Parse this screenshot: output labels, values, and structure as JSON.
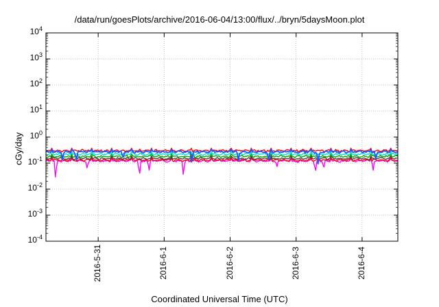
{
  "chart_data": {
    "type": "line",
    "title": "/data/run/goesPlots/archive/2016-06-04/13:00/flux/../bryn/5daysMoon.plot",
    "xlabel": "Coordinated Universal Time (UTC)",
    "ylabel": "cGy/day",
    "y_scale": "log",
    "ylim": [
      0.0001,
      10000
    ],
    "xlim": [
      "2016-05-30 05:00",
      "2016-06-04 13:00"
    ],
    "grid": true,
    "yticks": [
      {
        "value": 0.0001,
        "base": "10",
        "exp": "-4"
      },
      {
        "value": 0.001,
        "base": "10",
        "exp": "-3"
      },
      {
        "value": 0.01,
        "base": "10",
        "exp": "-2"
      },
      {
        "value": 0.1,
        "base": "10",
        "exp": "-1"
      },
      {
        "value": 1,
        "base": "10",
        "exp": "0"
      },
      {
        "value": 10,
        "base": "10",
        "exp": "1"
      },
      {
        "value": 100,
        "base": "10",
        "exp": "2"
      },
      {
        "value": 1000,
        "base": "10",
        "exp": "3"
      },
      {
        "value": 10000,
        "base": "10",
        "exp": "4"
      }
    ],
    "xticks": [
      {
        "value": "2016-05-31",
        "label": "2016-5-31"
      },
      {
        "value": "2016-06-01",
        "label": "2016-6-1"
      },
      {
        "value": "2016-06-02",
        "label": "2016-6-2"
      },
      {
        "value": "2016-06-03",
        "label": "2016-6-3"
      },
      {
        "value": "2016-06-04",
        "label": "2016-6-4"
      }
    ],
    "series": [
      {
        "color": "#ff00ff",
        "base": 0.12,
        "dips": [
          {
            "t": "2016-05-30 08:30",
            "v": 0.022
          },
          {
            "t": "2016-05-30 20:00",
            "v": 0.06
          },
          {
            "t": "2016-05-31 15:00",
            "v": 0.028
          },
          {
            "t": "2016-05-31 18:30",
            "v": 0.05
          },
          {
            "t": "2016-06-01 07:00",
            "v": 0.03
          },
          {
            "t": "2016-06-02 17:00",
            "v": 0.07
          },
          {
            "t": "2016-06-03 07:00",
            "v": 0.04
          },
          {
            "t": "2016-06-03 10:00",
            "v": 0.06
          },
          {
            "t": "2016-06-04 04:00",
            "v": 0.05
          }
        ]
      },
      {
        "color": "#ff0000",
        "base": 0.13,
        "dips": []
      },
      {
        "color": "#444444",
        "base": 0.15,
        "dips": []
      },
      {
        "color": "#00aa00",
        "base": 0.18,
        "dips": []
      },
      {
        "color": "#00dddd",
        "base": 0.22,
        "dips": []
      },
      {
        "color": "#ff0000",
        "base": 0.3,
        "dips": []
      },
      {
        "color": "#2255ff",
        "base": 0.27,
        "dips": [
          {
            "t": "2016-05-30 11:00",
            "v": 0.13
          },
          {
            "t": "2016-05-30 16:00",
            "v": 0.11
          },
          {
            "t": "2016-05-31 09:00",
            "v": 0.14
          },
          {
            "t": "2016-06-01 10:00",
            "v": 0.09
          },
          {
            "t": "2016-06-02 03:00",
            "v": 0.12
          },
          {
            "t": "2016-06-02 14:00",
            "v": 0.12
          },
          {
            "t": "2016-06-03 08:00",
            "v": 0.09
          },
          {
            "t": "2016-06-04 05:00",
            "v": 0.13
          }
        ]
      }
    ]
  }
}
